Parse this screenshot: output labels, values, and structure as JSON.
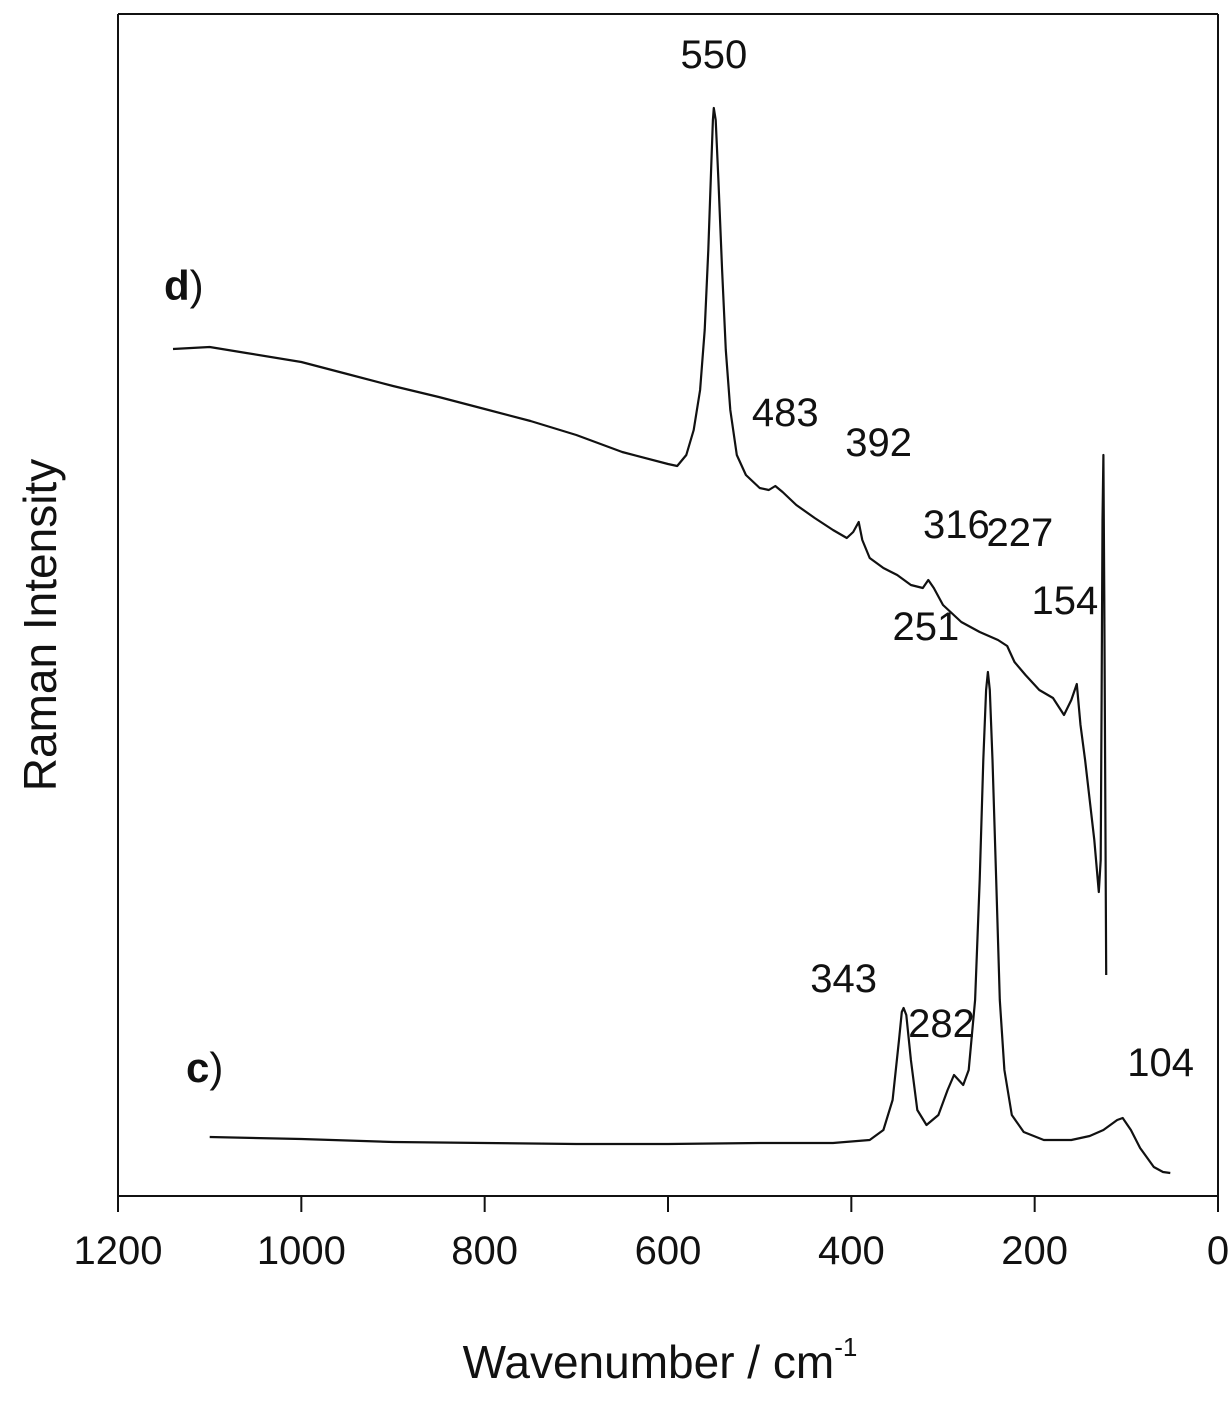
{
  "chart_data": {
    "type": "line",
    "xlabel_main": "Wavenumber / cm",
    "xlabel_sup": "-1",
    "ylabel": "Raman Intensity",
    "xlim": [
      1200,
      0
    ],
    "x_reversed": true,
    "x_ticks": [
      1200,
      1000,
      800,
      600,
      400,
      200,
      0
    ],
    "y_ticks_shown": false,
    "grid": false,
    "legend": "none",
    "series": [
      {
        "name": "d",
        "label_letter": "d",
        "label_paren": ")",
        "points": [
          [
            1140,
            349
          ],
          [
            1100,
            347
          ],
          [
            1060,
            353
          ],
          [
            1000,
            362
          ],
          [
            950,
            374
          ],
          [
            900,
            386
          ],
          [
            850,
            397
          ],
          [
            800,
            409
          ],
          [
            750,
            421
          ],
          [
            700,
            435
          ],
          [
            650,
            452
          ],
          [
            600,
            464
          ],
          [
            590,
            466
          ],
          [
            580,
            455
          ],
          [
            572,
            430
          ],
          [
            565,
            390
          ],
          [
            560,
            330
          ],
          [
            556,
            250
          ],
          [
            553,
            170
          ],
          [
            551,
            120
          ],
          [
            550,
            108
          ],
          [
            548,
            120
          ],
          [
            545,
            180
          ],
          [
            541,
            270
          ],
          [
            537,
            350
          ],
          [
            532,
            410
          ],
          [
            525,
            455
          ],
          [
            515,
            475
          ],
          [
            500,
            488
          ],
          [
            490,
            490
          ],
          [
            483,
            486
          ],
          [
            475,
            492
          ],
          [
            460,
            505
          ],
          [
            440,
            518
          ],
          [
            420,
            530
          ],
          [
            405,
            538
          ],
          [
            398,
            532
          ],
          [
            392,
            522
          ],
          [
            388,
            540
          ],
          [
            380,
            558
          ],
          [
            365,
            568
          ],
          [
            350,
            575
          ],
          [
            335,
            585
          ],
          [
            322,
            588
          ],
          [
            316,
            580
          ],
          [
            310,
            588
          ],
          [
            300,
            605
          ],
          [
            280,
            622
          ],
          [
            260,
            632
          ],
          [
            240,
            640
          ],
          [
            230,
            646
          ],
          [
            227,
            652
          ],
          [
            222,
            662
          ],
          [
            210,
            675
          ],
          [
            195,
            690
          ],
          [
            180,
            698
          ],
          [
            168,
            715
          ],
          [
            160,
            700
          ],
          [
            154,
            684
          ],
          [
            150,
            725
          ],
          [
            145,
            760
          ],
          [
            140,
            800
          ],
          [
            135,
            840
          ],
          [
            130,
            892
          ],
          [
            128,
            860
          ],
          [
            127,
            700
          ],
          [
            126,
            520
          ],
          [
            125,
            455
          ],
          [
            124,
            600
          ],
          [
            123,
            800
          ],
          [
            122,
            975
          ]
        ]
      },
      {
        "name": "c",
        "label_letter": "c",
        "label_paren": ")",
        "points": [
          [
            1100,
            1137
          ],
          [
            1000,
            1139
          ],
          [
            900,
            1142
          ],
          [
            800,
            1143
          ],
          [
            700,
            1144
          ],
          [
            600,
            1144
          ],
          [
            500,
            1143
          ],
          [
            420,
            1143
          ],
          [
            380,
            1140
          ],
          [
            365,
            1130
          ],
          [
            355,
            1100
          ],
          [
            348,
            1040
          ],
          [
            345,
            1012
          ],
          [
            343,
            1008
          ],
          [
            340,
            1015
          ],
          [
            335,
            1060
          ],
          [
            328,
            1110
          ],
          [
            318,
            1125
          ],
          [
            305,
            1115
          ],
          [
            295,
            1090
          ],
          [
            288,
            1075
          ],
          [
            283,
            1080
          ],
          [
            278,
            1085
          ],
          [
            272,
            1070
          ],
          [
            265,
            1000
          ],
          [
            260,
            880
          ],
          [
            256,
            760
          ],
          [
            253,
            690
          ],
          [
            251,
            672
          ],
          [
            249,
            690
          ],
          [
            246,
            760
          ],
          [
            242,
            880
          ],
          [
            238,
            1000
          ],
          [
            233,
            1070
          ],
          [
            225,
            1115
          ],
          [
            212,
            1132
          ],
          [
            190,
            1140
          ],
          [
            160,
            1140
          ],
          [
            140,
            1136
          ],
          [
            125,
            1130
          ],
          [
            110,
            1120
          ],
          [
            104,
            1118
          ],
          [
            95,
            1130
          ],
          [
            85,
            1148
          ],
          [
            70,
            1167
          ],
          [
            60,
            1172
          ],
          [
            52,
            1173
          ]
        ]
      }
    ],
    "annotations": [
      {
        "text": "550",
        "x": 550,
        "series": "d"
      },
      {
        "text": "483",
        "x": 483,
        "series": "d"
      },
      {
        "text": "392",
        "x": 392,
        "series": "d"
      },
      {
        "text": "316",
        "x": 316,
        "series": "d"
      },
      {
        "text": "227",
        "x": 227,
        "series": "d"
      },
      {
        "text": "154",
        "x": 154,
        "series": "d"
      },
      {
        "text": "251",
        "x": 251,
        "series": "c"
      },
      {
        "text": "282",
        "x": 282,
        "series": "c"
      },
      {
        "text": "343",
        "x": 343,
        "series": "c"
      },
      {
        "text": "104",
        "x": 104,
        "series": "c"
      }
    ],
    "colors": {
      "trace": "#111111",
      "axis": "#111111",
      "background": "#ffffff"
    }
  }
}
